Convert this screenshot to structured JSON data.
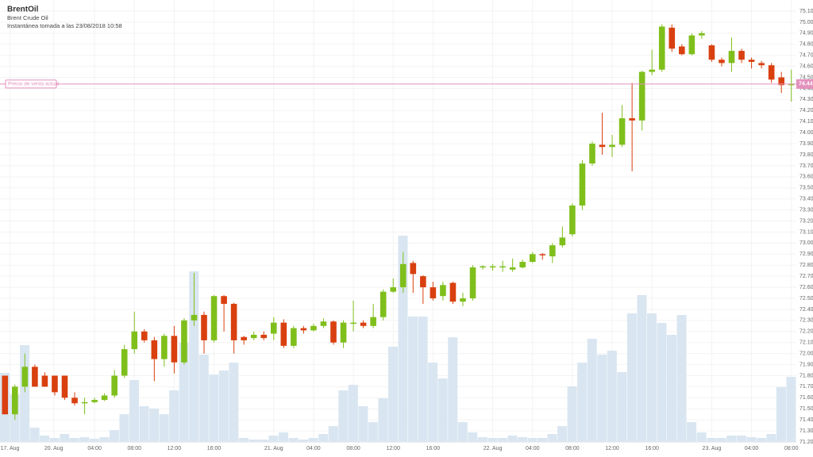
{
  "chart_data": {
    "type": "candlestick",
    "title": "BrentOil",
    "subtitle": "Brent Crude Oil",
    "snapshot": "Instantánea tomada a las 23/08/2018 10:58",
    "current_price": {
      "label": "Precio de venta actual",
      "value": 74.44
    },
    "up_color": "#7fbf1c",
    "down_color": "#d9400f",
    "volume_color": "#d9e6f1",
    "current_color": "#e391bd",
    "open": [
      71.8,
      71.45,
      71.7,
      71.88,
      71.8,
      71.8,
      71.8,
      71.6,
      71.55,
      71.56,
      71.58,
      71.62,
      71.8,
      72.04,
      72.2,
      72.12,
      71.95,
      72.16,
      71.92,
      72.3,
      72.35,
      72.12,
      72.52,
      72.45,
      72.15,
      72.14,
      72.17,
      72.18,
      72.28,
      72.07,
      72.23,
      72.21,
      72.25,
      72.29,
      72.1,
      72.28,
      72.28,
      72.25,
      72.33,
      72.56,
      72.6,
      72.82,
      72.7,
      72.6,
      72.52,
      72.64,
      72.47,
      72.5,
      72.78,
      72.79,
      72.78,
      72.76,
      72.78,
      72.83,
      72.9,
      72.88,
      72.98,
      73.08,
      73.34,
      73.72,
      73.89,
      73.87,
      73.89,
      74.13,
      74.11,
      74.55,
      74.57,
      74.95,
      74.78,
      74.71,
      74.88,
      74.79,
      74.66,
      74.63,
      74.74,
      74.66,
      74.63,
      74.61,
      74.5,
      74.43
    ],
    "high": [
      71.8,
      71.72,
      72.0,
      71.9,
      71.83,
      71.8,
      71.8,
      71.65,
      71.6,
      71.6,
      71.64,
      71.85,
      72.08,
      72.38,
      72.22,
      72.15,
      72.18,
      72.25,
      72.32,
      72.73,
      72.38,
      72.53,
      72.53,
      72.46,
      72.16,
      72.2,
      72.2,
      72.33,
      72.31,
      72.25,
      72.25,
      72.27,
      72.32,
      72.3,
      72.3,
      72.48,
      72.3,
      72.45,
      72.58,
      72.68,
      72.92,
      72.84,
      72.71,
      72.65,
      72.65,
      72.65,
      72.55,
      72.8,
      72.8,
      72.81,
      72.84,
      72.86,
      72.85,
      72.92,
      72.91,
      73.0,
      73.15,
      73.36,
      73.75,
      73.92,
      74.18,
      73.98,
      74.25,
      74.45,
      74.56,
      74.75,
      74.98,
      74.98,
      74.8,
      74.9,
      74.92,
      74.8,
      74.68,
      74.86,
      74.76,
      74.68,
      74.65,
      74.63,
      74.55,
      74.57
    ],
    "low": [
      71.45,
      71.4,
      71.65,
      71.7,
      71.7,
      71.62,
      71.58,
      71.53,
      71.45,
      71.55,
      71.57,
      71.6,
      71.78,
      72.0,
      72.1,
      71.75,
      71.88,
      71.82,
      71.9,
      72.25,
      72.0,
      72.1,
      72.2,
      72.0,
      72.08,
      72.12,
      72.12,
      72.12,
      72.05,
      72.05,
      72.18,
      72.2,
      72.23,
      72.08,
      72.05,
      72.2,
      72.23,
      72.23,
      72.3,
      72.55,
      72.55,
      72.55,
      72.45,
      72.48,
      72.48,
      72.45,
      72.43,
      72.48,
      72.76,
      72.75,
      72.74,
      72.74,
      72.77,
      72.82,
      72.85,
      72.82,
      72.96,
      73.06,
      73.3,
      73.7,
      73.8,
      73.78,
      73.87,
      73.65,
      74.02,
      74.52,
      74.55,
      74.73,
      74.7,
      74.7,
      74.85,
      74.64,
      74.6,
      74.55,
      74.63,
      74.58,
      74.58,
      74.45,
      74.36,
      74.28
    ],
    "close": [
      71.45,
      71.7,
      71.88,
      71.7,
      71.7,
      71.65,
      71.6,
      71.55,
      71.56,
      71.58,
      71.62,
      71.8,
      72.04,
      72.2,
      72.12,
      71.95,
      72.16,
      71.92,
      72.3,
      72.35,
      72.12,
      72.52,
      72.45,
      72.12,
      72.12,
      72.17,
      72.14,
      72.28,
      72.07,
      72.23,
      72.21,
      72.25,
      72.29,
      72.1,
      72.28,
      72.28,
      72.25,
      72.33,
      72.56,
      72.6,
      72.81,
      72.72,
      72.6,
      72.5,
      72.62,
      72.47,
      72.5,
      72.78,
      72.79,
      72.79,
      72.79,
      72.78,
      72.83,
      72.9,
      72.89,
      72.98,
      73.05,
      73.34,
      73.72,
      73.9,
      73.87,
      73.89,
      74.13,
      74.11,
      74.55,
      74.57,
      74.96,
      74.76,
      74.71,
      74.88,
      74.9,
      74.66,
      74.63,
      74.74,
      74.66,
      74.64,
      74.61,
      74.48,
      74.43,
      74.44
    ],
    "volume": [
      87,
      60,
      122,
      18,
      8,
      5,
      10,
      5,
      6,
      4,
      6,
      15,
      35,
      78,
      45,
      42,
      35,
      65,
      125,
      215,
      110,
      85,
      90,
      100,
      5,
      3,
      3,
      8,
      12,
      5,
      3,
      5,
      10,
      20,
      65,
      72,
      45,
      25,
      55,
      120,
      260,
      158,
      158,
      100,
      80,
      132,
      25,
      12,
      6,
      5,
      5,
      8,
      6,
      5,
      5,
      10,
      20,
      70,
      100,
      130,
      110,
      115,
      88,
      162,
      185,
      162,
      150,
      135,
      160,
      25,
      12,
      5,
      5,
      8,
      8,
      6,
      5,
      10,
      69,
      82
    ],
    "vlim": [
      0,
      300
    ],
    "ylim": [
      71.2,
      75.1
    ],
    "yticks": [
      {
        "value": 71.2,
        "label": "71.20"
      },
      {
        "value": 71.3,
        "label": "71.30"
      },
      {
        "value": 71.4,
        "label": "71.40"
      },
      {
        "value": 71.5,
        "label": "71.50"
      },
      {
        "value": 71.6,
        "label": "71.60"
      },
      {
        "value": 71.7,
        "label": "71.70"
      },
      {
        "value": 71.8,
        "label": "71.80"
      },
      {
        "value": 71.9,
        "label": "71.90"
      },
      {
        "value": 72.0,
        "label": "72.00"
      },
      {
        "value": 72.1,
        "label": "72.10"
      },
      {
        "value": 72.2,
        "label": "72.20"
      },
      {
        "value": 72.3,
        "label": "72.30"
      },
      {
        "value": 72.4,
        "label": "72.40"
      },
      {
        "value": 72.5,
        "label": "72.50"
      },
      {
        "value": 72.6,
        "label": "72.60"
      },
      {
        "value": 72.7,
        "label": "72.70"
      },
      {
        "value": 72.8,
        "label": "72.80"
      },
      {
        "value": 72.9,
        "label": "72.90"
      },
      {
        "value": 73.0,
        "label": "73.00"
      },
      {
        "value": 73.1,
        "label": "73.10"
      },
      {
        "value": 73.2,
        "label": "73.20"
      },
      {
        "value": 73.3,
        "label": "73.30"
      },
      {
        "value": 73.4,
        "label": "73.40"
      },
      {
        "value": 73.5,
        "label": "73.50"
      },
      {
        "value": 73.6,
        "label": "73.60"
      },
      {
        "value": 73.7,
        "label": "73.70"
      },
      {
        "value": 73.8,
        "label": "73.80"
      },
      {
        "value": 73.9,
        "label": "73.90"
      },
      {
        "value": 74.0,
        "label": "74.00"
      },
      {
        "value": 74.1,
        "label": "74.10"
      },
      {
        "value": 74.2,
        "label": "74.20"
      },
      {
        "value": 74.3,
        "label": "74.30"
      },
      {
        "value": 74.4,
        "label": "74.40"
      },
      {
        "value": 74.5,
        "label": "74.50"
      },
      {
        "value": 74.6,
        "label": "74.60"
      },
      {
        "value": 74.7,
        "label": "74.70"
      },
      {
        "value": 74.8,
        "label": "74.80"
      },
      {
        "value": 74.9,
        "label": "74.90"
      },
      {
        "value": 75.0,
        "label": "75.00"
      },
      {
        "value": 75.1,
        "label": "75.10"
      }
    ],
    "xlim": [
      -0.5,
      79.5
    ],
    "xticks": [
      {
        "value": 0.5,
        "label": "17. Aug"
      },
      {
        "value": 4.9,
        "label": "20. Aug"
      },
      {
        "value": 9,
        "label": "04:00"
      },
      {
        "value": 13,
        "label": "08:00"
      },
      {
        "value": 17,
        "label": "12:00"
      },
      {
        "value": 21,
        "label": "16:00"
      },
      {
        "value": 27,
        "label": "21. Aug"
      },
      {
        "value": 31,
        "label": "04:00"
      },
      {
        "value": 35,
        "label": "08:00"
      },
      {
        "value": 39,
        "label": "12:00"
      },
      {
        "value": 43,
        "label": "16:00"
      },
      {
        "value": 49,
        "label": "22. Aug"
      },
      {
        "value": 53,
        "label": "04:00"
      },
      {
        "value": 57,
        "label": "08:00"
      },
      {
        "value": 61,
        "label": "12:00"
      },
      {
        "value": 65,
        "label": "16:00"
      },
      {
        "value": 71,
        "label": "23. Aug"
      },
      {
        "value": 75,
        "label": "04:00"
      },
      {
        "value": 79,
        "label": "08:00"
      }
    ],
    "grid": true
  }
}
